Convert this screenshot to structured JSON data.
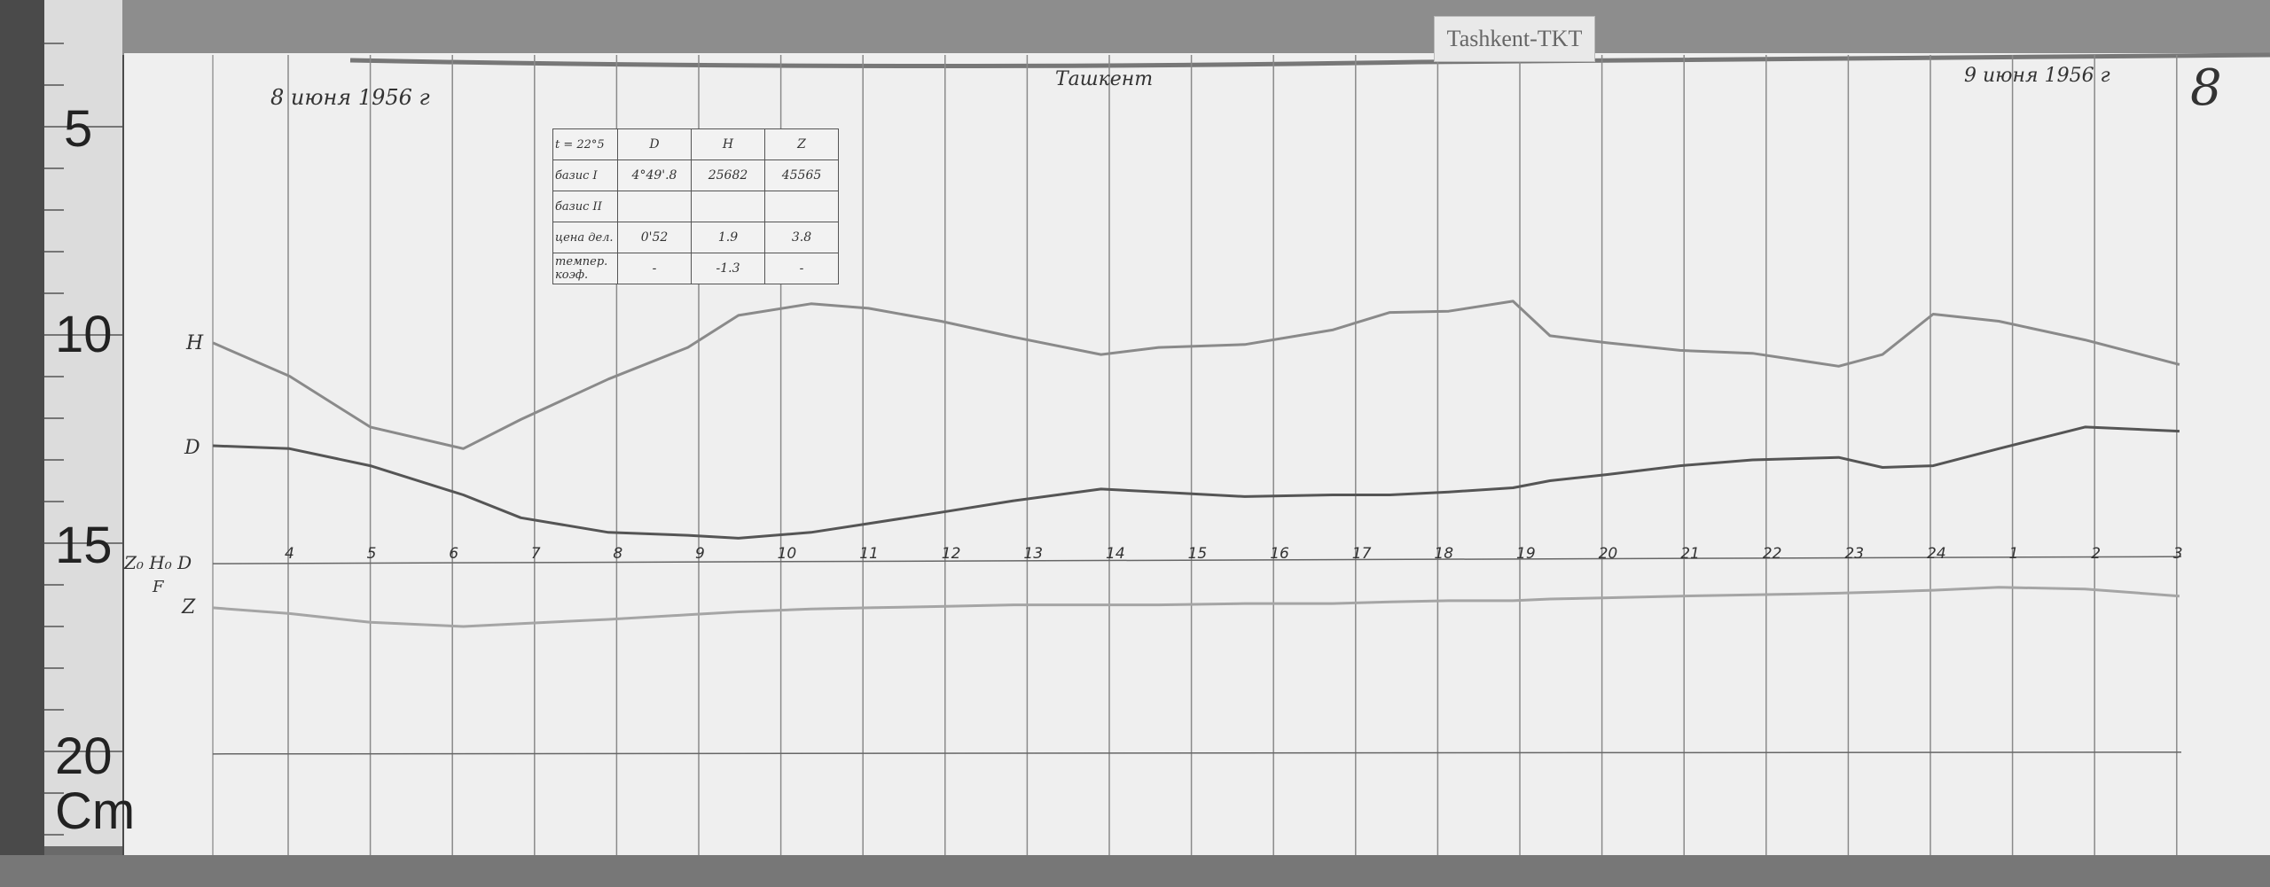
{
  "station_label": "Tashkent-TKT",
  "sheet_number": "8",
  "date_start": "8 июня 1956 г",
  "date_end": "9 июня 1956 г",
  "place": "Ташкент",
  "ruler": {
    "labels": [
      "5",
      "10",
      "15",
      "20"
    ],
    "unit": "Cm"
  },
  "trace_labels": {
    "H": "H",
    "D": "D",
    "baseline": "Z₀ H₀ D",
    "F": "F",
    "Z": "Z"
  },
  "baseline_table": {
    "header": [
      "t = 22°5",
      "D",
      "H",
      "Z"
    ],
    "rows": [
      [
        "базис I",
        "4°49'.8",
        "25682",
        "45565"
      ],
      [
        "базис II",
        "",
        "",
        ""
      ],
      [
        "цена дел.",
        "0'52",
        "1.9",
        "3.8"
      ],
      [
        "темпер. коэф.",
        "-",
        "-1.3",
        "-"
      ]
    ]
  },
  "chart_data": {
    "type": "line",
    "title": "",
    "xlabel": "",
    "ylabel": "",
    "y_unit": "cm (ruler reading)",
    "hour_ticks": [
      "4",
      "5",
      "6",
      "7",
      "8",
      "9",
      "10",
      "11",
      "12",
      "13",
      "14",
      "15",
      "16",
      "17",
      "18",
      "19",
      "20",
      "21",
      "22",
      "23",
      "24",
      "1",
      "2",
      "3"
    ],
    "grid": true,
    "baseline_cm": 15.45,
    "bottom_line_cm": 20.06,
    "x": [
      "03:05",
      "04:01",
      "05:00",
      "06:08",
      "06:50",
      "07:54",
      "08:52",
      "09:29",
      "10:22",
      "11:04",
      "11:57",
      "12:50",
      "13:54",
      "14:36",
      "15:39",
      "16:43",
      "17:25",
      "18:08",
      "18:55",
      "19:22",
      "20:04",
      "20:57",
      "21:50",
      "22:53",
      "23:25",
      "00:02",
      "00:50",
      "01:53",
      "03:02"
    ],
    "series": [
      {
        "name": "H",
        "color": "#8a8a8a",
        "values": [
          10.19,
          10.99,
          12.21,
          12.73,
          12.03,
          11.06,
          10.3,
          9.53,
          9.25,
          9.36,
          9.67,
          10.05,
          10.47,
          10.3,
          10.23,
          9.88,
          9.46,
          9.43,
          9.19,
          10.02,
          10.19,
          10.37,
          10.44,
          10.75,
          10.47,
          9.5,
          9.67,
          10.12,
          10.71
        ]
      },
      {
        "name": "D",
        "color": "#555555",
        "values": [
          12.66,
          12.73,
          13.14,
          13.84,
          14.39,
          14.74,
          14.81,
          14.88,
          14.74,
          14.53,
          14.26,
          13.98,
          13.7,
          13.77,
          13.88,
          13.84,
          13.84,
          13.77,
          13.67,
          13.5,
          13.35,
          13.14,
          13.0,
          12.94,
          13.18,
          13.14,
          12.73,
          12.21,
          12.31
        ]
      },
      {
        "name": "Z",
        "color": "#a5a5a5",
        "values": [
          16.55,
          16.69,
          16.9,
          17.0,
          16.93,
          16.83,
          16.72,
          16.65,
          16.58,
          16.55,
          16.52,
          16.48,
          16.48,
          16.48,
          16.45,
          16.45,
          16.41,
          16.38,
          16.38,
          16.34,
          16.31,
          16.27,
          16.24,
          16.2,
          16.17,
          16.13,
          16.06,
          16.1,
          16.27
        ]
      }
    ]
  }
}
